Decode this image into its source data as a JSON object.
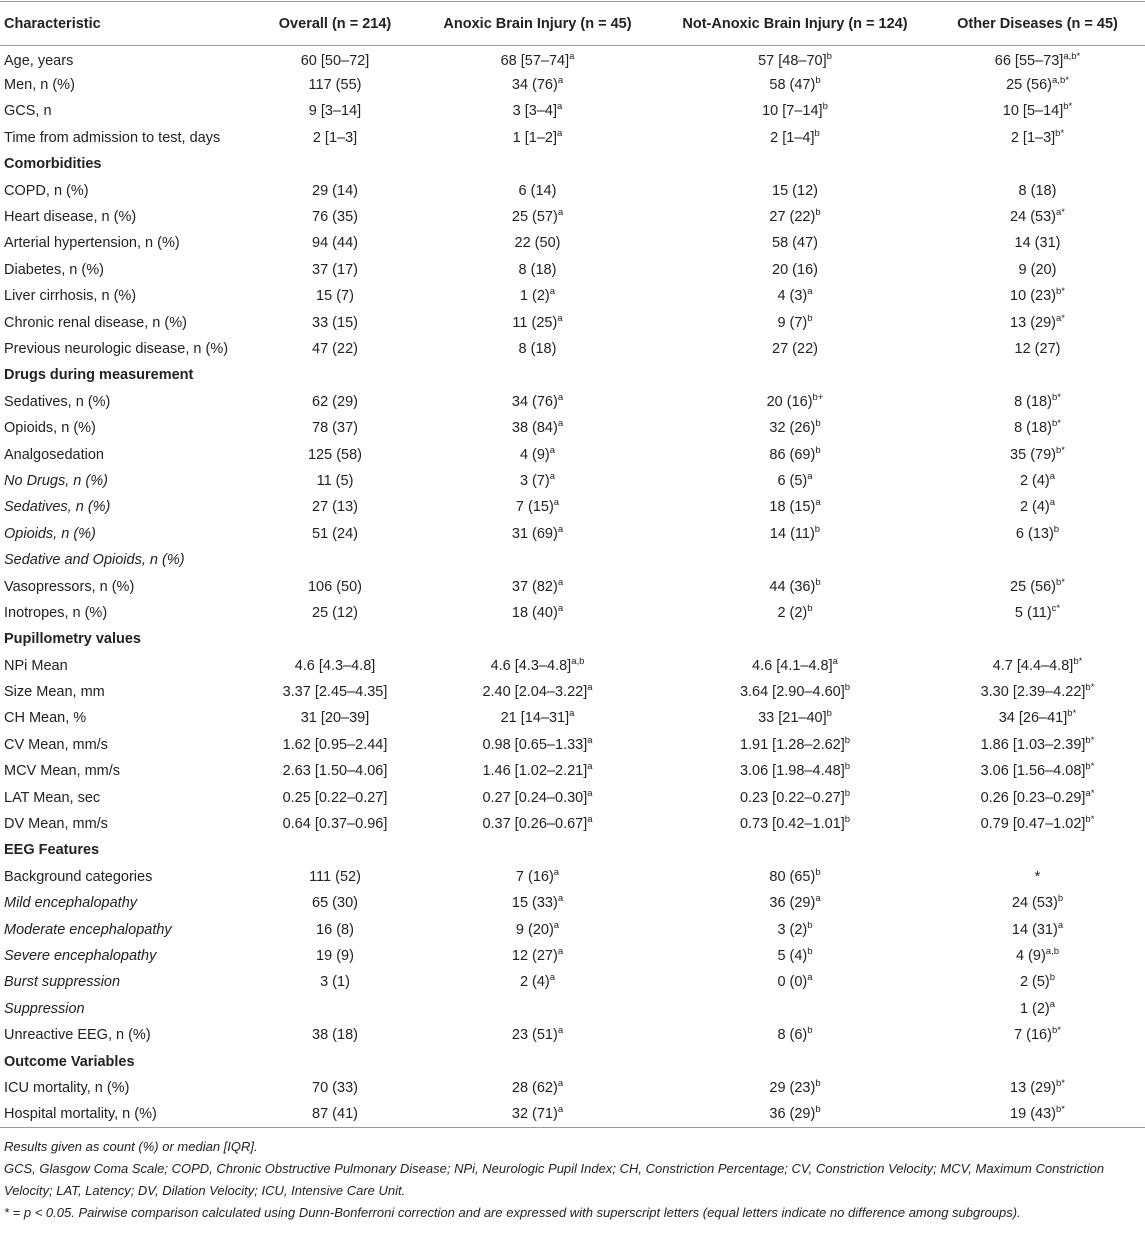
{
  "table": {
    "header": [
      "Characteristic",
      "Overall (n = 214)",
      "Anoxic Brain Injury (n = 45)",
      "Not-Anoxic Brain Injury (n = 124)",
      "Other Diseases (n = 45)"
    ],
    "rows": [
      {
        "label": "Age, years",
        "cells": [
          "60 [50–72]",
          {
            "text": "68 [57–74]",
            "sup": "a"
          },
          {
            "text": "57 [48–70]",
            "sup": "b"
          },
          {
            "text": "66 [55–73]",
            "sup": "a,b*"
          }
        ]
      },
      {
        "label": "Men, n (%)",
        "cells": [
          "117 (55)",
          {
            "text": "34 (76)",
            "sup": "a"
          },
          {
            "text": "58 (47)",
            "sup": "b"
          },
          {
            "text": "25 (56)",
            "sup": "a,b*"
          }
        ]
      },
      {
        "label": "GCS, n",
        "cells": [
          "9 [3–14]",
          {
            "text": "3 [3–4]",
            "sup": "a"
          },
          {
            "text": "10 [7–14]",
            "sup": "b"
          },
          {
            "text": "10 [5–14]",
            "sup": "b*"
          }
        ]
      },
      {
        "label": "Time from admission to test, days",
        "cells": [
          "2 [1–3]",
          {
            "text": "1 [1–2]",
            "sup": "a"
          },
          {
            "text": "2 [1–4]",
            "sup": "b"
          },
          {
            "text": "2 [1–3]",
            "sup": "b*"
          }
        ]
      },
      {
        "section": "Comorbidities"
      },
      {
        "label": "COPD, n (%)",
        "cells": [
          "29 (14)",
          "6 (14)",
          "15 (12)",
          "8 (18)"
        ]
      },
      {
        "label": "Heart disease, n (%)",
        "cells": [
          "76 (35)",
          {
            "text": "25 (57)",
            "sup": "a"
          },
          {
            "text": "27 (22)",
            "sup": "b"
          },
          {
            "text": "24 (53)",
            "sup": "a*"
          }
        ]
      },
      {
        "label": "Arterial hypertension, n (%)",
        "cells": [
          "94 (44)",
          "22 (50)",
          "58 (47)",
          "14 (31)"
        ]
      },
      {
        "label": "Diabetes, n (%)",
        "cells": [
          "37 (17)",
          "8 (18)",
          "20 (16)",
          "9 (20)"
        ]
      },
      {
        "label": "Liver cirrhosis, n (%)",
        "cells": [
          "15 (7)",
          {
            "text": "1 (2)",
            "sup": "a"
          },
          {
            "text": "4 (3)",
            "sup": "a"
          },
          {
            "text": "10 (23)",
            "sup": "b*"
          }
        ]
      },
      {
        "label": "Chronic renal disease, n (%)",
        "cells": [
          "33 (15)",
          {
            "text": "11 (25)",
            "sup": "a"
          },
          {
            "text": "9 (7)",
            "sup": "b"
          },
          {
            "text": "13 (29)",
            "sup": "a*"
          }
        ]
      },
      {
        "label": "Previous neurologic disease, n (%)",
        "cells": [
          "47 (22)",
          "8 (18)",
          "27 (22)",
          "12 (27)"
        ]
      },
      {
        "section": "Drugs during measurement"
      },
      {
        "label": "Sedatives, n (%)",
        "cells": [
          "62 (29)",
          {
            "text": "34 (76)",
            "sup": "a"
          },
          {
            "text": "20 (16)",
            "sup": "b+"
          },
          {
            "text": "8 (18)",
            "sup": "b*"
          }
        ]
      },
      {
        "label": "Opioids, n (%)",
        "cells": [
          "78 (37)",
          {
            "text": "38 (84)",
            "sup": "a"
          },
          {
            "text": "32 (26)",
            "sup": "b"
          },
          {
            "text": "8 (18)",
            "sup": "b*"
          }
        ]
      },
      {
        "label": "Analgosedation",
        "cells": [
          "125 (58)",
          {
            "text": "4 (9)",
            "sup": "a"
          },
          {
            "text": "86 (69)",
            "sup": "b"
          },
          {
            "text": "35 (79)",
            "sup": "b*"
          }
        ]
      },
      {
        "label": "No Drugs, n (%)",
        "italic": true,
        "cells": [
          "11 (5)",
          {
            "text": "3 (7)",
            "sup": "a"
          },
          {
            "text": "6 (5)",
            "sup": "a"
          },
          {
            "text": "2 (4)",
            "sup": "a"
          }
        ]
      },
      {
        "label": "Sedatives, n (%)",
        "italic": true,
        "cells": [
          "27 (13)",
          {
            "text": "7 (15)",
            "sup": "a"
          },
          {
            "text": "18 (15)",
            "sup": "a"
          },
          {
            "text": "2 (4)",
            "sup": "a"
          }
        ]
      },
      {
        "label": "Opioids, n (%)",
        "italic": true,
        "cells": [
          "51 (24)",
          {
            "text": "31 (69)",
            "sup": "a"
          },
          {
            "text": "14 (11)",
            "sup": "b"
          },
          {
            "text": "6 (13)",
            "sup": "b"
          }
        ]
      },
      {
        "label": "Sedative and Opioids, n (%)",
        "italic": true,
        "cells": [
          null,
          null,
          null,
          null
        ]
      },
      {
        "label": "Vasopressors, n (%)",
        "cells": [
          "106 (50)",
          {
            "text": "37 (82)",
            "sup": "a"
          },
          {
            "text": "44 (36)",
            "sup": "b"
          },
          {
            "text": "25 (56)",
            "sup": "b*"
          }
        ]
      },
      {
        "label": "Inotropes, n (%)",
        "cells": [
          "25 (12)",
          {
            "text": "18 (40)",
            "sup": "a"
          },
          {
            "text": "2 (2)",
            "sup": "b"
          },
          {
            "text": "5 (11)",
            "sup": "c*"
          }
        ]
      },
      {
        "section": "Pupillometry values"
      },
      {
        "label": "NPi Mean",
        "cells": [
          "4.6 [4.3–4.8]",
          {
            "text": "4.6 [4.3–4.8]",
            "sup": "a,b"
          },
          {
            "text": "4.6 [4.1–4.8]",
            "sup": "a"
          },
          {
            "text": "4.7 [4.4–4.8]",
            "sup": "b*"
          }
        ]
      },
      {
        "label": "Size Mean, mm",
        "cells": [
          "3.37 [2.45–4.35]",
          {
            "text": "2.40 [2.04–3.22]",
            "sup": "a"
          },
          {
            "text": "3.64 [2.90–4.60]",
            "sup": "b"
          },
          {
            "text": "3.30 [2.39–4.22]",
            "sup": "b*"
          }
        ]
      },
      {
        "label": "CH Mean, %",
        "cells": [
          "31 [20–39]",
          {
            "text": "21 [14–31]",
            "sup": "a"
          },
          {
            "text": "33 [21–40]",
            "sup": "b"
          },
          {
            "text": "34 [26–41]",
            "sup": "b*"
          }
        ]
      },
      {
        "label": "CV Mean, mm/s",
        "cells": [
          "1.62 [0.95–2.44]",
          {
            "text": "0.98 [0.65–1.33]",
            "sup": "a"
          },
          {
            "text": "1.91 [1.28–2.62]",
            "sup": "b"
          },
          {
            "text": "1.86 [1.03–2.39]",
            "sup": "b*"
          }
        ]
      },
      {
        "label": "MCV Mean, mm/s",
        "cells": [
          "2.63 [1.50–4.06]",
          {
            "text": "1.46 [1.02–2.21]",
            "sup": "a"
          },
          {
            "text": "3.06 [1.98–4.48]",
            "sup": "b"
          },
          {
            "text": "3.06 [1.56–4.08]",
            "sup": "b*"
          }
        ]
      },
      {
        "label": "LAT Mean, sec",
        "cells": [
          "0.25 [0.22–0.27]",
          {
            "text": "0.27 [0.24–0.30]",
            "sup": "a"
          },
          {
            "text": "0.23 [0.22–0.27]",
            "sup": "b"
          },
          {
            "text": "0.26 [0.23–0.29]",
            "sup": "a*"
          }
        ]
      },
      {
        "label": "DV Mean, mm/s",
        "cells": [
          "0.64 [0.37–0.96]",
          {
            "text": "0.37 [0.26–0.67]",
            "sup": "a"
          },
          {
            "text": "0.73 [0.42–1.01]",
            "sup": "b"
          },
          {
            "text": "0.79 [0.47–1.02]",
            "sup": "b*"
          }
        ]
      },
      {
        "section": "EEG Features"
      },
      {
        "label": "Background categories",
        "cells": [
          "111 (52)",
          {
            "text": "7 (16)",
            "sup": "a"
          },
          {
            "text": "80 (65)",
            "sup": "b"
          },
          "*"
        ]
      },
      {
        "label": "Mild encephalopathy",
        "italic": true,
        "cells": [
          "65 (30)",
          {
            "text": "15 (33)",
            "sup": "a"
          },
          {
            "text": "36 (29)",
            "sup": "a"
          },
          {
            "text": "24 (53)",
            "sup": "b"
          }
        ]
      },
      {
        "label": "Moderate encephalopathy",
        "italic": true,
        "cells": [
          "16 (8)",
          {
            "text": "9 (20)",
            "sup": "a"
          },
          {
            "text": "3 (2)",
            "sup": "b"
          },
          {
            "text": "14 (31)",
            "sup": "a"
          }
        ]
      },
      {
        "label": "Severe encephalopathy",
        "italic": true,
        "cells": [
          "19 (9)",
          {
            "text": "12 (27)",
            "sup": "a"
          },
          {
            "text": "5 (4)",
            "sup": "b"
          },
          {
            "text": "4 (9)",
            "sup": "a,b"
          }
        ]
      },
      {
        "label": "Burst suppression",
        "italic": true,
        "cells": [
          "3 (1)",
          {
            "text": "2 (4)",
            "sup": "a"
          },
          {
            "text": "0 (0)",
            "sup": "a"
          },
          {
            "text": "2 (5)",
            "sup": "b"
          }
        ]
      },
      {
        "label": "Suppression",
        "italic": true,
        "cells": [
          null,
          null,
          null,
          {
            "text": "1 (2)",
            "sup": "a"
          }
        ]
      },
      {
        "label": "Unreactive EEG, n (%)",
        "cells": [
          "38 (18)",
          {
            "text": "23 (51)",
            "sup": "a"
          },
          {
            "text": "8 (6)",
            "sup": "b"
          },
          {
            "text": "7 (16)",
            "sup": "b*"
          }
        ]
      },
      {
        "section": "Outcome Variables"
      },
      {
        "label": "ICU mortality, n (%)",
        "cells": [
          "70 (33)",
          {
            "text": "28 (62)",
            "sup": "a"
          },
          {
            "text": "29 (23)",
            "sup": "b"
          },
          {
            "text": "13 (29)",
            "sup": "b*"
          }
        ]
      },
      {
        "label": "Hospital mortality, n (%)",
        "cells": [
          "87 (41)",
          {
            "text": "32 (71)",
            "sup": "a"
          },
          {
            "text": "36 (29)",
            "sup": "b"
          },
          {
            "text": "19 (43)",
            "sup": "b*"
          }
        ]
      }
    ]
  },
  "footnotes": [
    "Results given as count (%) or median [IQR].",
    "GCS, Glasgow Coma Scale; COPD, Chronic Obstructive Pulmonary Disease; NPi, Neurologic Pupil Index; CH, Constriction Percentage; CV, Constriction Velocity; MCV, Maximum Constriction Velocity; LAT, Latency; DV, Dilation Velocity; ICU, Intensive Care Unit.",
    "* = p < 0.05. Pairwise comparison calculated using Dunn-Bonferroni correction and are expressed with superscript letters (equal letters indicate no difference among subgroups)."
  ]
}
